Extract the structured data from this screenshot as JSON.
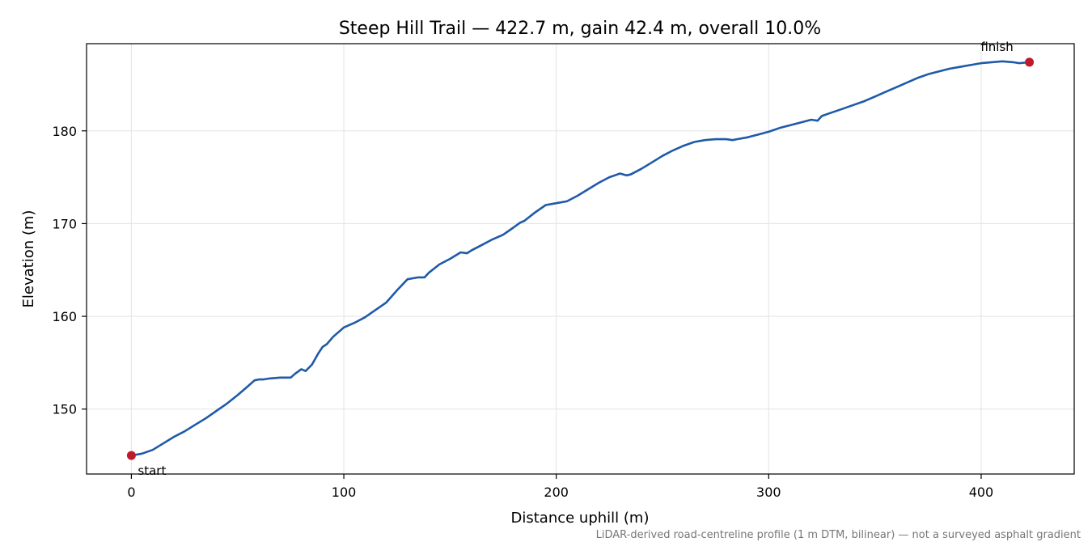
{
  "chart_data": {
    "type": "line",
    "title": "Steep Hill Trail — 422.7 m, gain 42.4 m, overall 10.0%",
    "xlabel": "Distance uphill (m)",
    "ylabel": "Elevation (m)",
    "caption": "LiDAR-derived road-centreline profile (1 m DTM, bilinear) — not a surveyed asphalt gradient",
    "xlim": [
      -21.1,
      443.8
    ],
    "ylim": [
      143.0,
      189.4
    ],
    "xticks": [
      0,
      100,
      200,
      300,
      400
    ],
    "yticks": [
      150,
      160,
      170,
      180
    ],
    "grid": true,
    "series": [
      {
        "color": "#1f5aa8",
        "x": [
          0,
          5,
          10,
          15,
          20,
          25,
          30,
          35,
          40,
          45,
          50,
          55,
          58,
          60,
          62,
          65,
          70,
          75,
          77,
          80,
          82,
          85,
          88,
          90,
          92,
          95,
          100,
          105,
          110,
          115,
          120,
          125,
          130,
          135,
          138,
          140,
          145,
          150,
          155,
          158,
          160,
          165,
          170,
          175,
          180,
          183,
          185,
          190,
          195,
          200,
          205,
          210,
          215,
          220,
          225,
          230,
          233,
          235,
          240,
          245,
          250,
          255,
          260,
          265,
          270,
          275,
          280,
          283,
          285,
          290,
          295,
          300,
          305,
          310,
          315,
          320,
          323,
          325,
          330,
          335,
          340,
          345,
          350,
          355,
          360,
          365,
          370,
          375,
          380,
          385,
          390,
          395,
          400,
          405,
          410,
          415,
          418,
          422.7
        ],
        "y": [
          145.0,
          145.2,
          145.6,
          146.3,
          147.0,
          147.6,
          148.3,
          149.0,
          149.8,
          150.6,
          151.5,
          152.5,
          153.1,
          153.2,
          153.2,
          153.3,
          153.4,
          153.4,
          153.8,
          154.3,
          154.1,
          154.8,
          156.0,
          156.7,
          157.0,
          157.8,
          158.8,
          159.3,
          159.9,
          160.7,
          161.5,
          162.8,
          164.0,
          164.2,
          164.2,
          164.7,
          165.6,
          166.2,
          166.9,
          166.8,
          167.1,
          167.7,
          168.3,
          168.8,
          169.6,
          170.1,
          170.3,
          171.2,
          172.0,
          172.2,
          172.4,
          173.0,
          173.7,
          174.4,
          175.0,
          175.4,
          175.2,
          175.3,
          175.9,
          176.6,
          177.3,
          177.9,
          178.4,
          178.8,
          179.0,
          179.1,
          179.1,
          179.0,
          179.1,
          179.3,
          179.6,
          179.9,
          180.3,
          180.6,
          180.9,
          181.2,
          181.1,
          181.6,
          182.0,
          182.4,
          182.8,
          183.2,
          183.7,
          184.2,
          184.7,
          185.2,
          185.7,
          186.1,
          186.4,
          186.7,
          186.9,
          187.1,
          187.3,
          187.4,
          187.5,
          187.4,
          187.3,
          187.4
        ]
      }
    ],
    "markers": [
      {
        "label": "start",
        "x": 0,
        "y": 145.0
      },
      {
        "label": "finish",
        "x": 422.7,
        "y": 187.4
      }
    ],
    "marker_color": "#c0192b"
  }
}
